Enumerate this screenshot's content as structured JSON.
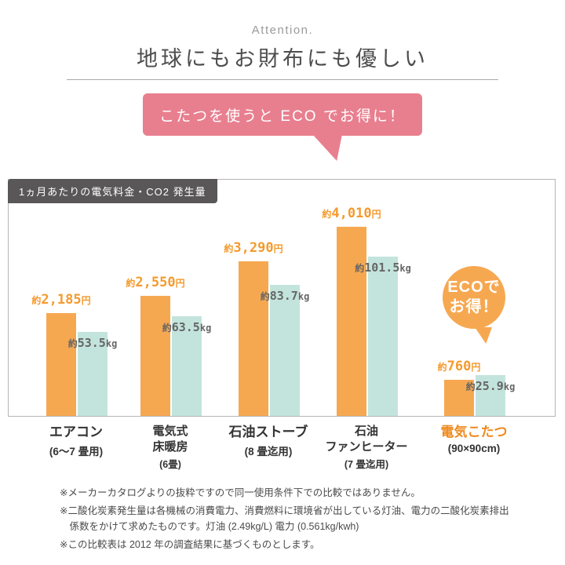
{
  "header": {
    "attention": "Attention.",
    "title": "地球にもお財布にも優しい"
  },
  "bubble": {
    "text": "こたつを使うと ECO でお得に！",
    "bg": "#e87f8f"
  },
  "chart": {
    "tag": "1ヵ月あたりの電気料金・CO2 発生量",
    "badge": {
      "line1": "ECOで",
      "line2": "お得！"
    }
  },
  "chart_data": {
    "type": "bar",
    "title": "1ヵ月あたりの電気料金・CO2 発生量",
    "legend": "none",
    "grid": false,
    "categories": [
      {
        "lines": [
          "エアコン"
        ],
        "sub": "(6〜7 畳用)"
      },
      {
        "lines": [
          "電気式",
          "床暖房"
        ],
        "sub": "(6畳)",
        "small": true
      },
      {
        "lines": [
          "石油ストーブ"
        ],
        "sub": "(8 畳迄用)"
      },
      {
        "lines": [
          "石油",
          "ファンヒーター"
        ],
        "sub": "(7 畳迄用)",
        "small": true
      },
      {
        "lines": [
          "電気こたつ"
        ],
        "sub": "(90×90cm)",
        "highlight": true
      }
    ],
    "series": [
      {
        "name": "電気料金(円)",
        "color": "#f6a851",
        "values": [
          2185,
          2550,
          3290,
          4010,
          760
        ],
        "labels": [
          "約2,185円",
          "約2,550円",
          "約3,290円",
          "約4,010円",
          "約760円"
        ]
      },
      {
        "name": "CO2発生量(kg)",
        "color": "#c3e4dc",
        "values": [
          53.5,
          63.5,
          83.7,
          101.5,
          25.9
        ],
        "labels": [
          "約53.5kg",
          "約63.5kg",
          "約83.7kg",
          "約101.5kg",
          "約25.9kg"
        ]
      }
    ],
    "annotation": "ECOでお得！"
  },
  "notes": [
    "※メーカーカタログよりの抜粋ですので同一使用条件下での比較ではありません。",
    "※二酸化炭素発生量は各機械の消費電力、消費燃料に環境省が出している灯油、電力の二酸化炭素排出係数をかけて求めたものです。灯油 (2.49kg/L) 電力 (0.561kg/kwh)",
    "※この比較表は 2012 年の調査結果に基づくものとします。"
  ],
  "colors": {
    "cost_bar": "#f6a851",
    "co2_bar": "#c3e4dc",
    "bubble": "#e87f8f",
    "badge": "#f6a851",
    "price_text": "#f49a2d",
    "kg_text": "#666666",
    "tag_bg": "#595757",
    "highlight_text": "#ef8a1f"
  }
}
